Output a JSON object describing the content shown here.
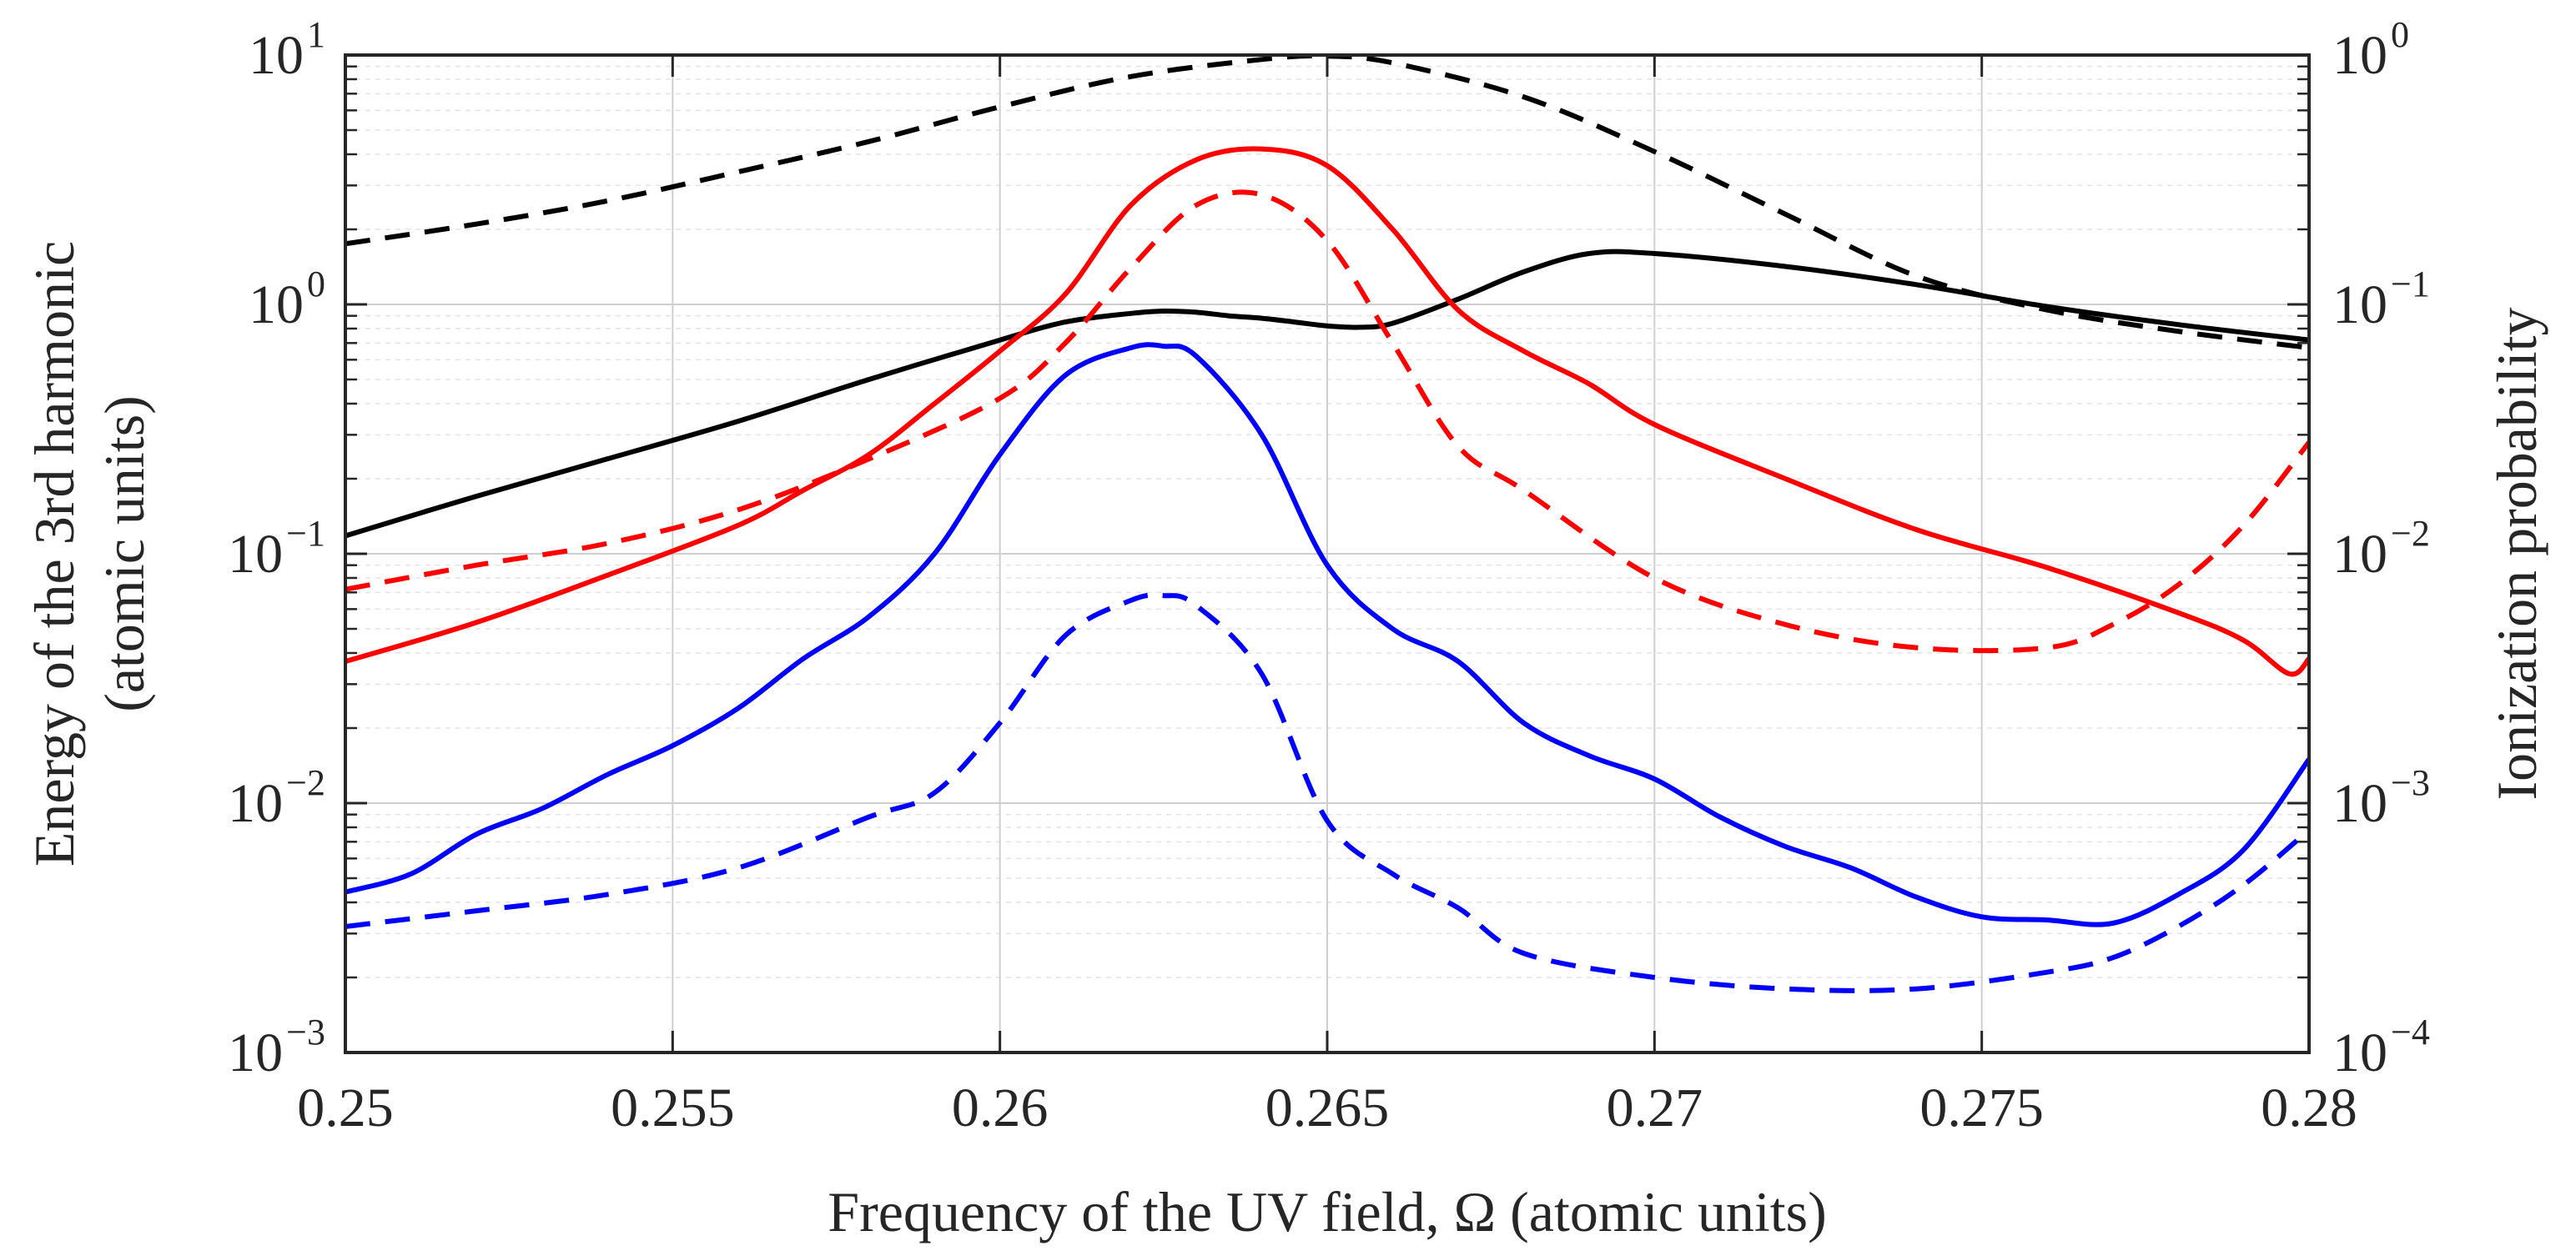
{
  "chart_data": {
    "type": "line",
    "xlabel": "Frequency of the UV field, Ω (atomic units)",
    "ylabel_left_line1": "Energy of the 3rd harmonic",
    "ylabel_left_line2": "(atomic units)",
    "ylabel_right": "Ionization probability",
    "x_ticks": [
      "0.25",
      "0.255",
      "0.26",
      "0.265",
      "0.27",
      "0.275",
      "0.28"
    ],
    "y_left_ticks": [
      {
        "base": "10",
        "exp": "1"
      },
      {
        "base": "10",
        "exp": "0"
      },
      {
        "base": "10",
        "exp": "−1"
      },
      {
        "base": "10",
        "exp": "−2"
      },
      {
        "base": "10",
        "exp": "−3"
      }
    ],
    "y_right_ticks": [
      {
        "base": "10",
        "exp": "0"
      },
      {
        "base": "10",
        "exp": "−1"
      },
      {
        "base": "10",
        "exp": "−2"
      },
      {
        "base": "10",
        "exp": "−3"
      },
      {
        "base": "10",
        "exp": "−4"
      }
    ],
    "xlim": [
      0.25,
      0.28
    ],
    "ylim_left": [
      0.001,
      10
    ],
    "ylim_right": [
      0.0001,
      1
    ],
    "yscale": "log",
    "grid": true,
    "series": [
      {
        "color": "#000000",
        "dash": false,
        "axis": "left",
        "x": [
          0.25,
          0.252,
          0.254,
          0.256,
          0.258,
          0.26,
          0.261,
          0.262,
          0.2625,
          0.263,
          0.2635,
          0.264,
          0.2645,
          0.265,
          0.2655,
          0.266,
          0.267,
          0.268,
          0.269,
          0.27,
          0.272,
          0.274,
          0.276,
          0.278,
          0.28
        ],
        "y": [
          0.118,
          0.17,
          0.24,
          0.34,
          0.5,
          0.72,
          0.85,
          0.92,
          0.94,
          0.93,
          0.9,
          0.88,
          0.85,
          0.82,
          0.81,
          0.84,
          1.05,
          1.35,
          1.6,
          1.6,
          1.42,
          1.2,
          0.98,
          0.83,
          0.72
        ]
      },
      {
        "color": "#000000",
        "dash": true,
        "axis": "left",
        "x": [
          0.25,
          0.252,
          0.254,
          0.256,
          0.258,
          0.26,
          0.262,
          0.264,
          0.265,
          0.266,
          0.268,
          0.27,
          0.272,
          0.274,
          0.276,
          0.278,
          0.28
        ],
        "y": [
          1.75,
          2.1,
          2.6,
          3.4,
          4.5,
          6.2,
          8.2,
          9.6,
          9.9,
          9.3,
          6.8,
          4.1,
          2.3,
          1.3,
          0.95,
          0.78,
          0.67
        ]
      },
      {
        "color": "#ff0000",
        "dash": false,
        "axis": "left",
        "x": [
          0.25,
          0.252,
          0.254,
          0.256,
          0.257,
          0.258,
          0.259,
          0.26,
          0.261,
          0.262,
          0.263,
          0.264,
          0.265,
          0.266,
          0.267,
          0.268,
          0.269,
          0.27,
          0.272,
          0.274,
          0.276,
          0.278,
          0.279,
          0.2797,
          0.28
        ],
        "y": [
          0.037,
          0.053,
          0.082,
          0.13,
          0.18,
          0.25,
          0.4,
          0.65,
          1.1,
          2.5,
          3.8,
          4.2,
          3.6,
          2.0,
          0.95,
          0.65,
          0.48,
          0.33,
          0.2,
          0.125,
          0.088,
          0.058,
          0.045,
          0.033,
          0.038
        ]
      },
      {
        "color": "#ff0000",
        "dash": true,
        "axis": "left",
        "x": [
          0.25,
          0.252,
          0.254,
          0.256,
          0.258,
          0.26,
          0.261,
          0.262,
          0.263,
          0.264,
          0.265,
          0.266,
          0.267,
          0.268,
          0.27,
          0.272,
          0.274,
          0.276,
          0.277,
          0.278,
          0.279,
          0.28
        ],
        "y": [
          0.072,
          0.09,
          0.11,
          0.15,
          0.24,
          0.42,
          0.7,
          1.4,
          2.5,
          2.75,
          1.8,
          0.7,
          0.27,
          0.18,
          0.08,
          0.052,
          0.042,
          0.042,
          0.052,
          0.075,
          0.13,
          0.28
        ]
      },
      {
        "color": "#0000ff",
        "dash": false,
        "axis": "left",
        "x": [
          0.25,
          0.251,
          0.252,
          0.253,
          0.254,
          0.255,
          0.256,
          0.257,
          0.258,
          0.259,
          0.26,
          0.261,
          0.262,
          0.2625,
          0.263,
          0.264,
          0.265,
          0.266,
          0.267,
          0.268,
          0.269,
          0.27,
          0.271,
          0.272,
          0.273,
          0.274,
          0.275,
          0.276,
          0.277,
          0.278,
          0.279,
          0.28
        ],
        "y": [
          0.0044,
          0.0052,
          0.0075,
          0.0095,
          0.013,
          0.017,
          0.024,
          0.038,
          0.056,
          0.1,
          0.25,
          0.52,
          0.67,
          0.68,
          0.62,
          0.3,
          0.09,
          0.05,
          0.037,
          0.021,
          0.0155,
          0.0125,
          0.0088,
          0.0067,
          0.0055,
          0.0042,
          0.0035,
          0.0034,
          0.0033,
          0.0043,
          0.0065,
          0.015
        ]
      },
      {
        "color": "#0000ff",
        "dash": true,
        "axis": "left",
        "x": [
          0.25,
          0.252,
          0.254,
          0.256,
          0.258,
          0.259,
          0.26,
          0.261,
          0.262,
          0.2625,
          0.263,
          0.264,
          0.265,
          0.266,
          0.267,
          0.268,
          0.27,
          0.272,
          0.274,
          0.276,
          0.277,
          0.278,
          0.279,
          0.28
        ],
        "y": [
          0.0032,
          0.0037,
          0.0043,
          0.0055,
          0.0088,
          0.011,
          0.021,
          0.047,
          0.065,
          0.068,
          0.062,
          0.033,
          0.0085,
          0.0052,
          0.0038,
          0.0025,
          0.002,
          0.0018,
          0.0018,
          0.0021,
          0.0024,
          0.0032,
          0.0047,
          0.0078
        ]
      }
    ]
  }
}
